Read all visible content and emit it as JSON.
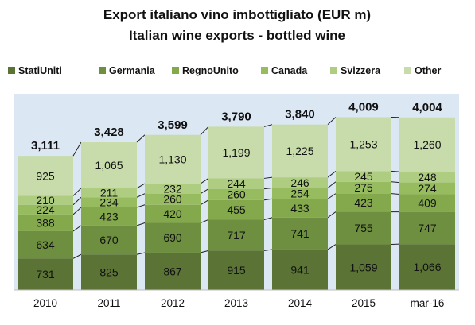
{
  "chart_data": {
    "type": "bar",
    "stacked": true,
    "title": "Export italiano vino imbottigliato (EUR m)",
    "subtitle": "Italian wine exports - bottled wine",
    "categories": [
      "2010",
      "2011",
      "2012",
      "2013",
      "2014",
      "2015",
      "mar-16"
    ],
    "series": [
      {
        "name": "StatiUniti",
        "color": "#5b7436",
        "values": [
          731,
          825,
          867,
          915,
          941,
          1059,
          1066
        ],
        "labels": [
          "731",
          "825",
          "867",
          "915",
          "941",
          "1,059",
          "1,066"
        ]
      },
      {
        "name": "Germania",
        "color": "#6e8f3f",
        "values": [
          634,
          670,
          690,
          717,
          741,
          755,
          747
        ],
        "labels": [
          "634",
          "670",
          "690",
          "717",
          "741",
          "755",
          "747"
        ]
      },
      {
        "name": "RegnoUnito",
        "color": "#84a84c",
        "values": [
          388,
          423,
          420,
          455,
          433,
          423,
          409
        ],
        "labels": [
          "388",
          "423",
          "420",
          "455",
          "433",
          "423",
          "409"
        ]
      },
      {
        "name": "Canada",
        "color": "#97bb5f",
        "values": [
          224,
          234,
          260,
          260,
          254,
          275,
          274
        ],
        "labels": [
          "224",
          "234",
          "260",
          "260",
          "254",
          "275",
          "274"
        ]
      },
      {
        "name": "Svizzera",
        "color": "#aecd81",
        "values": [
          210,
          211,
          232,
          244,
          246,
          245,
          248
        ],
        "labels": [
          "210",
          "211",
          "232",
          "244",
          "246",
          "245",
          "248"
        ]
      },
      {
        "name": "Other",
        "color": "#c7dcaa",
        "values": [
          925,
          1065,
          1130,
          1199,
          1225,
          1253,
          1260
        ],
        "labels": [
          "925",
          "1,065",
          "1,130",
          "1,199",
          "1,225",
          "1,253",
          "1,260"
        ]
      }
    ],
    "totals": [
      3111,
      3428,
      3599,
      3790,
      3840,
      4009,
      4004
    ],
    "total_labels": [
      "3,111",
      "3,428",
      "3,599",
      "3,790",
      "3,840",
      "4,009",
      "4,004"
    ],
    "ylim": [
      0,
      4400
    ],
    "grid": false,
    "legend_position": "top",
    "plot_background": "#dbe7f3",
    "connector_lines": true
  }
}
